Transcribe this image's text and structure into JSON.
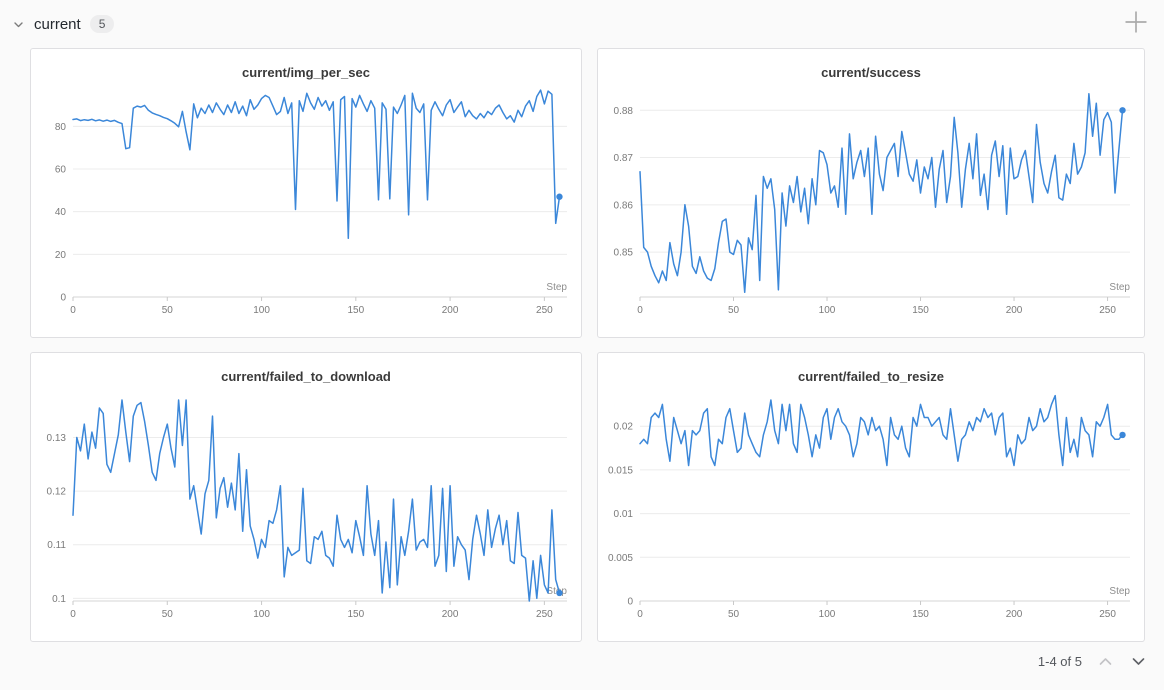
{
  "header": {
    "title": "current",
    "badge": "5"
  },
  "icons": {
    "collapse": "chevron-down-icon",
    "add_panel": "plus-icon",
    "page_prev": "chevron-up-icon",
    "page_next": "chevron-down-icon"
  },
  "pagination": {
    "label": "1-4 of 5"
  },
  "colors": {
    "line": "#3b87d9",
    "grid": "#ececec",
    "axis": "#d5d5d5",
    "tick": "#c9c9c9",
    "tick_text": "#7a7a7a",
    "axis_title": "#8d8d8d"
  },
  "chart_data": [
    {
      "type": "line",
      "title": "current/img_per_sec",
      "xlabel": "Step",
      "x_start": 0,
      "x_step": 2,
      "xlim": [
        0,
        262
      ],
      "ylim": [
        0,
        97.5
      ],
      "xticks": [
        0,
        50,
        100,
        150,
        200,
        250
      ],
      "yticks": [
        0,
        20,
        40,
        60,
        80
      ],
      "ytick_labels": [
        "0",
        "20",
        "40",
        "60",
        "80"
      ],
      "line_color": "#3b87d9",
      "end_marker": true,
      "values": [
        83.2,
        83.5,
        82.7,
        83.1,
        82.8,
        83.3,
        82.6,
        83.0,
        82.4,
        82.9,
        82.3,
        82.8,
        81.9,
        81.3,
        69.5,
        70.0,
        88.5,
        89.5,
        89.0,
        89.8,
        87.5,
        86.3,
        85.6,
        85.0,
        84.2,
        83.6,
        82.6,
        81.4,
        79.8,
        87.0,
        77.5,
        69.0,
        90.5,
        84.0,
        88.5,
        86.0,
        90.0,
        86.5,
        91.0,
        88.0,
        85.5,
        90.0,
        86.5,
        91.5,
        86.0,
        89.5,
        85.0,
        92.5,
        88.0,
        90.0,
        93.0,
        94.5,
        93.5,
        89.5,
        85.5,
        87.0,
        93.5,
        86.0,
        91.0,
        41.0,
        92.0,
        87.0,
        95.5,
        91.0,
        88.0,
        93.5,
        89.5,
        92.0,
        87.5,
        91.5,
        45.0,
        92.5,
        94.0,
        27.5,
        93.0,
        89.0,
        94.5,
        90.5,
        87.0,
        92.0,
        88.5,
        45.5,
        91.0,
        88.0,
        46.0,
        89.0,
        86.0,
        90.0,
        94.5,
        38.5,
        95.5,
        88.5,
        86.5,
        90.5,
        45.5,
        87.5,
        91.5,
        88.0,
        85.0,
        90.0,
        92.5,
        86.5,
        89.0,
        91.5,
        84.5,
        87.5,
        85.0,
        83.5,
        86.0,
        84.0,
        87.0,
        85.5,
        88.5,
        90.0,
        86.5,
        83.5,
        85.0,
        82.0,
        87.5,
        84.5,
        89.5,
        92.0,
        87.0,
        94.0,
        97.0,
        90.5,
        96.5,
        95.0,
        34.5,
        47.0
      ]
    },
    {
      "type": "line",
      "title": "current/success",
      "xlabel": "Step",
      "x_start": 0,
      "x_step": 2,
      "xlim": [
        0,
        262
      ],
      "ylim": [
        0.8405,
        0.8845
      ],
      "xticks": [
        0,
        50,
        100,
        150,
        200,
        250
      ],
      "yticks": [
        0.85,
        0.86,
        0.87,
        0.88
      ],
      "ytick_labels": [
        "0.85",
        "0.86",
        "0.87",
        "0.88"
      ],
      "line_color": "#3b87d9",
      "end_marker": true,
      "values": [
        0.867,
        0.851,
        0.85,
        0.847,
        0.845,
        0.8435,
        0.846,
        0.844,
        0.852,
        0.8475,
        0.845,
        0.85,
        0.86,
        0.8555,
        0.847,
        0.8455,
        0.849,
        0.846,
        0.8445,
        0.844,
        0.8465,
        0.852,
        0.8565,
        0.857,
        0.85,
        0.8495,
        0.8525,
        0.8515,
        0.8415,
        0.853,
        0.8505,
        0.862,
        0.844,
        0.866,
        0.8635,
        0.8655,
        0.859,
        0.842,
        0.8625,
        0.8555,
        0.864,
        0.8605,
        0.866,
        0.8585,
        0.8635,
        0.856,
        0.8655,
        0.86,
        0.8715,
        0.871,
        0.8685,
        0.8625,
        0.864,
        0.8595,
        0.872,
        0.858,
        0.875,
        0.8655,
        0.869,
        0.8715,
        0.866,
        0.872,
        0.858,
        0.8745,
        0.8665,
        0.863,
        0.87,
        0.8715,
        0.873,
        0.866,
        0.8755,
        0.871,
        0.8665,
        0.865,
        0.8695,
        0.8625,
        0.868,
        0.8655,
        0.87,
        0.8595,
        0.8675,
        0.8715,
        0.8605,
        0.866,
        0.8785,
        0.871,
        0.8595,
        0.8675,
        0.873,
        0.8655,
        0.875,
        0.862,
        0.8665,
        0.859,
        0.8705,
        0.8735,
        0.866,
        0.8725,
        0.858,
        0.872,
        0.8655,
        0.866,
        0.8695,
        0.8715,
        0.866,
        0.8605,
        0.877,
        0.869,
        0.8645,
        0.8625,
        0.867,
        0.8705,
        0.8615,
        0.861,
        0.8665,
        0.8645,
        0.873,
        0.8665,
        0.868,
        0.871,
        0.8835,
        0.8745,
        0.8815,
        0.8705,
        0.878,
        0.8795,
        0.8775,
        0.8625,
        0.8715,
        0.88
      ]
    },
    {
      "type": "line",
      "title": "current/failed_to_download",
      "xlabel": "Step",
      "x_start": 0,
      "x_step": 2,
      "xlim": [
        0,
        262
      ],
      "ylim": [
        0.0995,
        0.1383
      ],
      "xticks": [
        0,
        50,
        100,
        150,
        200,
        250
      ],
      "yticks": [
        0.1,
        0.11,
        0.12,
        0.13
      ],
      "ytick_labels": [
        "0.1",
        "0.11",
        "0.12",
        "0.13"
      ],
      "line_color": "#3b87d9",
      "end_marker": true,
      "values": [
        0.1155,
        0.13,
        0.1275,
        0.1325,
        0.126,
        0.131,
        0.128,
        0.1355,
        0.1345,
        0.125,
        0.1235,
        0.127,
        0.1305,
        0.137,
        0.131,
        0.1255,
        0.134,
        0.136,
        0.1365,
        0.133,
        0.1285,
        0.1235,
        0.122,
        0.127,
        0.13,
        0.1325,
        0.128,
        0.1245,
        0.137,
        0.1285,
        0.137,
        0.1185,
        0.121,
        0.1165,
        0.112,
        0.1195,
        0.122,
        0.134,
        0.115,
        0.1205,
        0.1225,
        0.117,
        0.1215,
        0.1165,
        0.127,
        0.1125,
        0.124,
        0.1135,
        0.111,
        0.1075,
        0.111,
        0.1095,
        0.1145,
        0.114,
        0.1165,
        0.121,
        0.104,
        0.1095,
        0.108,
        0.1085,
        0.109,
        0.1205,
        0.107,
        0.1065,
        0.1115,
        0.111,
        0.1125,
        0.108,
        0.1075,
        0.106,
        0.1155,
        0.111,
        0.1095,
        0.111,
        0.1085,
        0.1145,
        0.1115,
        0.108,
        0.121,
        0.112,
        0.108,
        0.1145,
        0.101,
        0.1105,
        0.102,
        0.1185,
        0.1025,
        0.1115,
        0.108,
        0.1125,
        0.1185,
        0.109,
        0.1105,
        0.111,
        0.1095,
        0.121,
        0.106,
        0.108,
        0.1205,
        0.105,
        0.121,
        0.106,
        0.1115,
        0.11,
        0.109,
        0.1035,
        0.111,
        0.1155,
        0.112,
        0.108,
        0.1165,
        0.1095,
        0.113,
        0.1155,
        0.11,
        0.1145,
        0.107,
        0.1065,
        0.116,
        0.108,
        0.1075,
        0.0995,
        0.107,
        0.1,
        0.108,
        0.1025,
        0.101,
        0.1165,
        0.1035,
        0.101
      ]
    },
    {
      "type": "line",
      "title": "current/failed_to_resize",
      "xlabel": "Step",
      "x_start": 0,
      "x_step": 2,
      "xlim": [
        0,
        262
      ],
      "ylim": [
        0,
        0.0238
      ],
      "xticks": [
        0,
        50,
        100,
        150,
        200,
        250
      ],
      "yticks": [
        0,
        0.005,
        0.01,
        0.015,
        0.02
      ],
      "ytick_labels": [
        "0",
        "0.005",
        "0.01",
        "0.015",
        "0.02"
      ],
      "line_color": "#3b87d9",
      "end_marker": true,
      "values": [
        0.018,
        0.0185,
        0.018,
        0.021,
        0.0215,
        0.021,
        0.0225,
        0.0185,
        0.016,
        0.021,
        0.0195,
        0.018,
        0.0195,
        0.0155,
        0.0195,
        0.019,
        0.0195,
        0.0215,
        0.022,
        0.0165,
        0.0155,
        0.0185,
        0.018,
        0.021,
        0.022,
        0.0195,
        0.017,
        0.0175,
        0.0215,
        0.019,
        0.018,
        0.017,
        0.0165,
        0.019,
        0.0205,
        0.023,
        0.0195,
        0.018,
        0.0225,
        0.0195,
        0.0225,
        0.018,
        0.017,
        0.0225,
        0.021,
        0.019,
        0.0165,
        0.019,
        0.0175,
        0.021,
        0.022,
        0.0185,
        0.021,
        0.022,
        0.0205,
        0.02,
        0.019,
        0.0165,
        0.018,
        0.021,
        0.0205,
        0.019,
        0.021,
        0.0195,
        0.02,
        0.0185,
        0.0155,
        0.021,
        0.019,
        0.0185,
        0.02,
        0.0175,
        0.0165,
        0.021,
        0.02,
        0.0225,
        0.021,
        0.021,
        0.02,
        0.0205,
        0.021,
        0.019,
        0.0185,
        0.022,
        0.019,
        0.016,
        0.0185,
        0.019,
        0.0205,
        0.0195,
        0.021,
        0.0205,
        0.022,
        0.021,
        0.0215,
        0.019,
        0.021,
        0.0215,
        0.0165,
        0.0175,
        0.0155,
        0.019,
        0.018,
        0.0185,
        0.021,
        0.0195,
        0.02,
        0.022,
        0.0205,
        0.021,
        0.0225,
        0.0235,
        0.019,
        0.0155,
        0.021,
        0.017,
        0.0185,
        0.0165,
        0.021,
        0.0195,
        0.019,
        0.0165,
        0.0205,
        0.02,
        0.021,
        0.0225,
        0.019,
        0.0185,
        0.0185,
        0.019
      ]
    }
  ]
}
